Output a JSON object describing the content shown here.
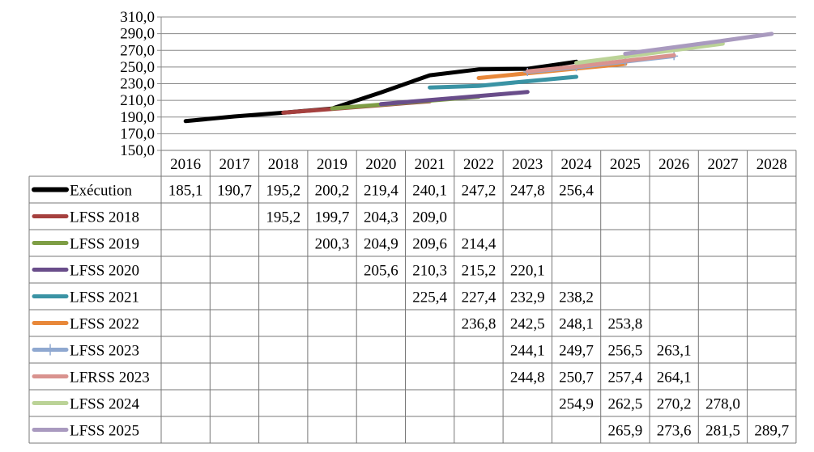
{
  "chart_data": {
    "type": "line",
    "title": "",
    "xlabel": "",
    "ylabel": "",
    "ylim": [
      150,
      310
    ],
    "y_ticks": [
      "150,0",
      "170,0",
      "190,0",
      "210,0",
      "230,0",
      "250,0",
      "270,0",
      "290,0",
      "310,0"
    ],
    "grid": "horizontal",
    "legend": "data table below the plot",
    "categories": [
      "2016",
      "2017",
      "2018",
      "2019",
      "2020",
      "2021",
      "2022",
      "2023",
      "2024",
      "2025",
      "2026",
      "2027",
      "2028"
    ],
    "series": [
      {
        "name": "Exécution",
        "color": "#000000",
        "marker": "none",
        "values": [
          "185,1",
          "190,7",
          "195,2",
          "200,2",
          "219,4",
          "240,1",
          "247,2",
          "247,8",
          "256,4",
          null,
          null,
          null,
          null
        ]
      },
      {
        "name": "LFSS 2018",
        "color": "#A5403E",
        "marker": "none",
        "values": [
          null,
          null,
          "195,2",
          "199,7",
          "204,3",
          "209,0",
          null,
          null,
          null,
          null,
          null,
          null,
          null
        ]
      },
      {
        "name": "LFSS 2019",
        "color": "#7E9E45",
        "marker": "none",
        "values": [
          null,
          null,
          null,
          "200,3",
          "204,9",
          "209,6",
          "214,4",
          null,
          null,
          null,
          null,
          null,
          null
        ]
      },
      {
        "name": "LFSS 2020",
        "color": "#694D8A",
        "marker": "none",
        "values": [
          null,
          null,
          null,
          null,
          "205,6",
          "210,3",
          "215,2",
          "220,1",
          null,
          null,
          null,
          null,
          null
        ]
      },
      {
        "name": "LFSS 2021",
        "color": "#3A93A4",
        "marker": "none",
        "values": [
          null,
          null,
          null,
          null,
          null,
          "225,4",
          "227,4",
          "232,9",
          "238,2",
          null,
          null,
          null,
          null
        ]
      },
      {
        "name": "LFSS 2022",
        "color": "#E8883A",
        "marker": "none",
        "values": [
          null,
          null,
          null,
          null,
          null,
          null,
          "236,8",
          "242,5",
          "248,1",
          "253,8",
          null,
          null,
          null
        ]
      },
      {
        "name": "LFSS 2023",
        "color": "#8FA8D0",
        "marker": "plus",
        "values": [
          null,
          null,
          null,
          null,
          null,
          null,
          null,
          "244,1",
          "249,7",
          "256,5",
          "263,1",
          null,
          null
        ]
      },
      {
        "name": "LFRSS 2023",
        "color": "#D9938F",
        "marker": "none",
        "values": [
          null,
          null,
          null,
          null,
          null,
          null,
          null,
          "244,8",
          "250,7",
          "257,4",
          "264,1",
          null,
          null
        ]
      },
      {
        "name": "LFSS 2024",
        "color": "#BBD397",
        "marker": "none",
        "values": [
          null,
          null,
          null,
          null,
          null,
          null,
          null,
          null,
          "254,9",
          "262,5",
          "270,2",
          "278,0",
          null
        ]
      },
      {
        "name": "LFSS 2025",
        "color": "#A99ABF",
        "marker": "none",
        "values": [
          null,
          null,
          null,
          null,
          null,
          null,
          null,
          null,
          null,
          "265,9",
          "273,6",
          "281,5",
          "289,7"
        ]
      }
    ]
  }
}
